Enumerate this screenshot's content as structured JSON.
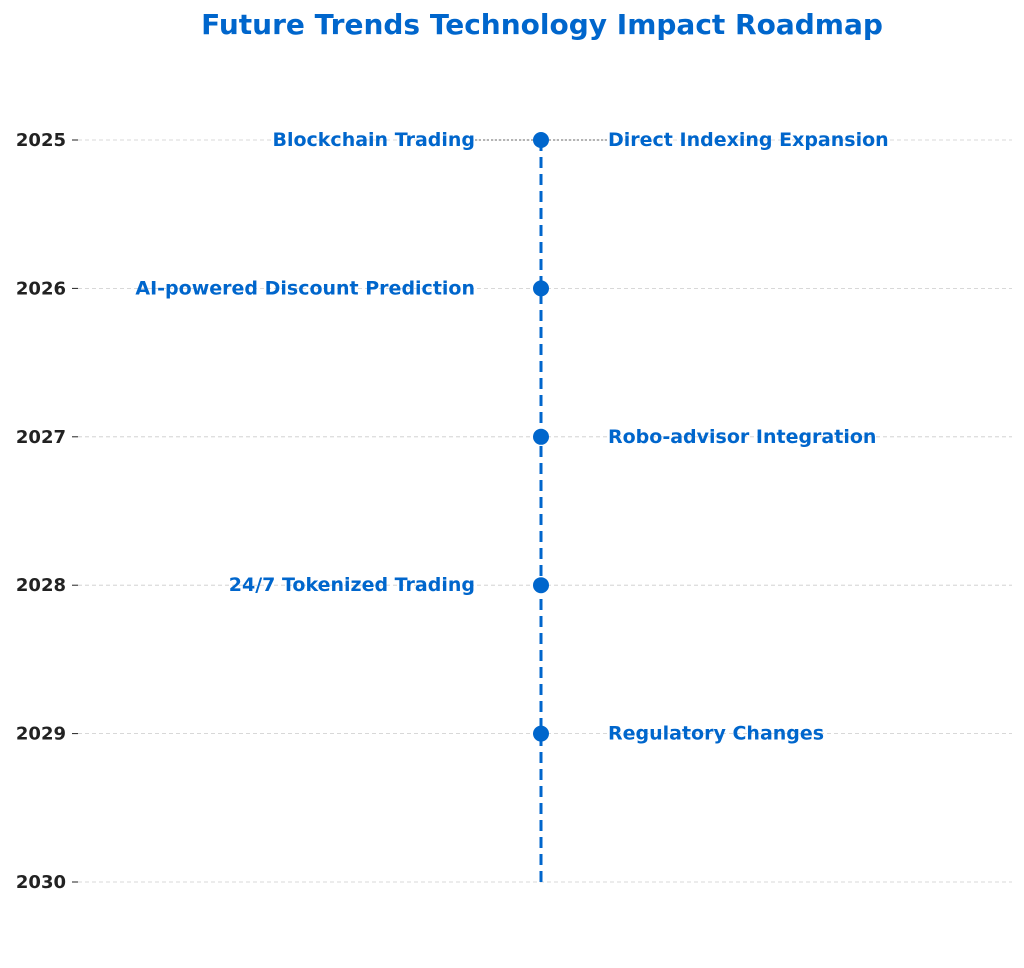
{
  "chart_data": {
    "type": "timeline",
    "title": "Future Trends Technology Impact Roadmap",
    "xlabel": "",
    "ylabel": "",
    "ylim": [
      2025,
      2030
    ],
    "y_ticks": [
      "2025",
      "2026",
      "2027",
      "2028",
      "2029",
      "2030"
    ],
    "grid": true,
    "legend": "none",
    "colors": {
      "accent": "#0066cc",
      "tick_text": "#222222",
      "grid": "#cccccc",
      "connector": "#888888"
    },
    "events": [
      {
        "year": 2025,
        "label": "Blockchain Trading",
        "side": "left"
      },
      {
        "year": 2025,
        "label": "Direct Indexing Expansion",
        "side": "right"
      },
      {
        "year": 2026,
        "label": "AI-powered Discount Prediction",
        "side": "left"
      },
      {
        "year": 2027,
        "label": "Robo-advisor Integration",
        "side": "right"
      },
      {
        "year": 2028,
        "label": "24/7 Tokenized Trading",
        "side": "left"
      },
      {
        "year": 2029,
        "label": "Regulatory Changes",
        "side": "right"
      }
    ],
    "markers": [
      2025,
      2026,
      2027,
      2028,
      2029
    ]
  }
}
